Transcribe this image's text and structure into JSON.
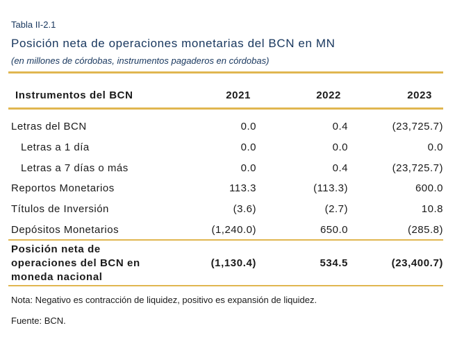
{
  "table_label": "Tabla II-2.1",
  "title": "Posición neta de operaciones monetarias del BCN en MN",
  "subtitle": "(en millones de córdobas, instrumentos pagaderos en córdobas)",
  "header": {
    "col0": "Instrumentos del BCN",
    "col1": "2021",
    "col2": "2022",
    "col3": "2023"
  },
  "rows": [
    {
      "label": "Letras del BCN",
      "v2021": "0.0",
      "v2022": "0.4",
      "v2023": "(23,725.7)"
    },
    {
      "label": "Letras a 1 día",
      "v2021": "0.0",
      "v2022": "0.0",
      "v2023": "0.0"
    },
    {
      "label": "Letras a 7 días o más",
      "v2021": "0.0",
      "v2022": "0.4",
      "v2023": "(23,725.7)"
    },
    {
      "label": "Reportos Monetarios",
      "v2021": "113.3",
      "v2022": "(113.3)",
      "v2023": "600.0"
    },
    {
      "label": "Títulos de Inversión",
      "v2021": "(3.6)",
      "v2022": "(2.7)",
      "v2023": "10.8"
    },
    {
      "label": "Depósitos Monetarios",
      "v2021": "(1,240.0)",
      "v2022": "650.0",
      "v2023": "(285.8)"
    }
  ],
  "total": {
    "label_line1": "Posición neta de",
    "label_line2": "operaciones del BCN en",
    "label_line3": "moneda nacional",
    "v2021": "(1,130.4)",
    "v2022": "534.5",
    "v2023": "(23,400.7)"
  },
  "note": "Nota: Negativo es contracción de liquidez, positivo es expansión de liquidez.",
  "source": "Fuente: BCN.",
  "colors": {
    "accent": "#e0b650",
    "title": "#17365d"
  }
}
